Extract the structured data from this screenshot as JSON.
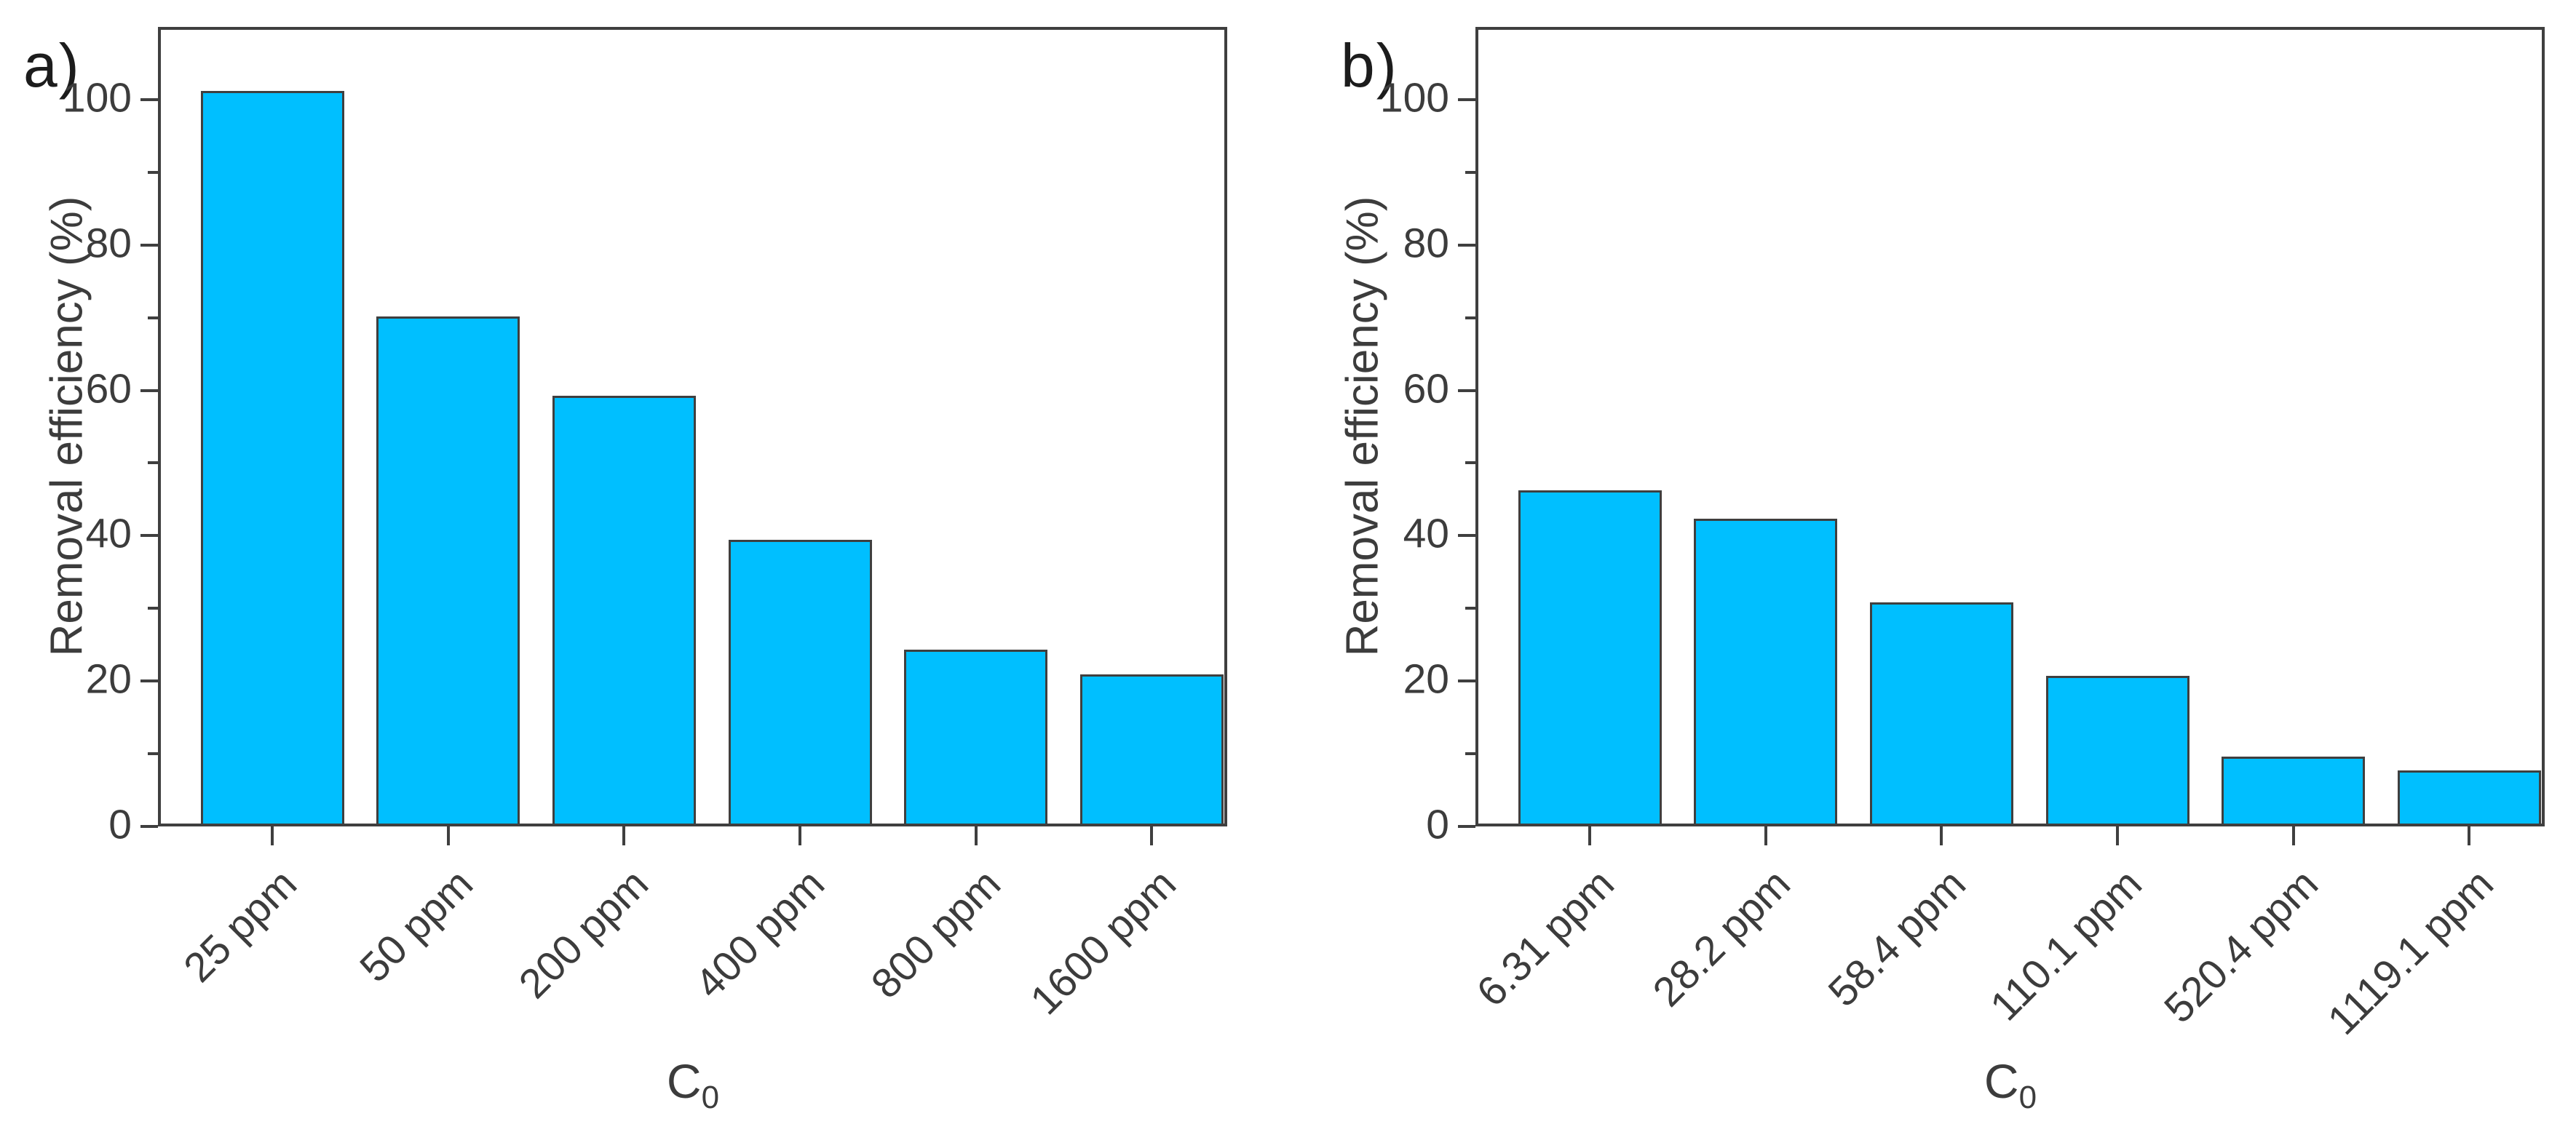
{
  "figure": {
    "background": "#ffffff",
    "bar_fill": "#00BFFF",
    "bar_edge": "#3F3F3F",
    "axis_color": "#3F3F3F",
    "text_color": "#3C3C3C"
  },
  "chart_data": [
    {
      "type": "bar",
      "panel_label": "a)",
      "ylabel": "Removal efficiency (%)",
      "xlabel_main": "C",
      "xlabel_sub": "0",
      "categories": [
        "25 ppm",
        "50 ppm",
        "200 ppm",
        "400 ppm",
        "800 ppm",
        "1600 ppm"
      ],
      "values": [
        101.2,
        70.2,
        59.3,
        39.4,
        24.3,
        20.9
      ],
      "ylim": [
        0,
        110
      ],
      "yticks": [
        0,
        20,
        40,
        60,
        80,
        100
      ],
      "yticks_minor": [
        10,
        30,
        50,
        70,
        90
      ],
      "grid": false,
      "legend": null
    },
    {
      "type": "bar",
      "panel_label": "b)",
      "ylabel": "Removal efficiency (%)",
      "xlabel_main": "C",
      "xlabel_sub": "0",
      "categories": [
        "6.31 ppm",
        "28.2 ppm",
        "58.4 ppm",
        "110.1 ppm",
        "520.4 ppm",
        "1119.1 ppm"
      ],
      "values": [
        46.2,
        42.3,
        30.8,
        20.7,
        9.6,
        7.7
      ],
      "ylim": [
        0,
        110
      ],
      "yticks": [
        0,
        20,
        40,
        60,
        80,
        100
      ],
      "yticks_minor": [
        10,
        30,
        50,
        70,
        90
      ],
      "grid": false,
      "legend": null
    }
  ]
}
